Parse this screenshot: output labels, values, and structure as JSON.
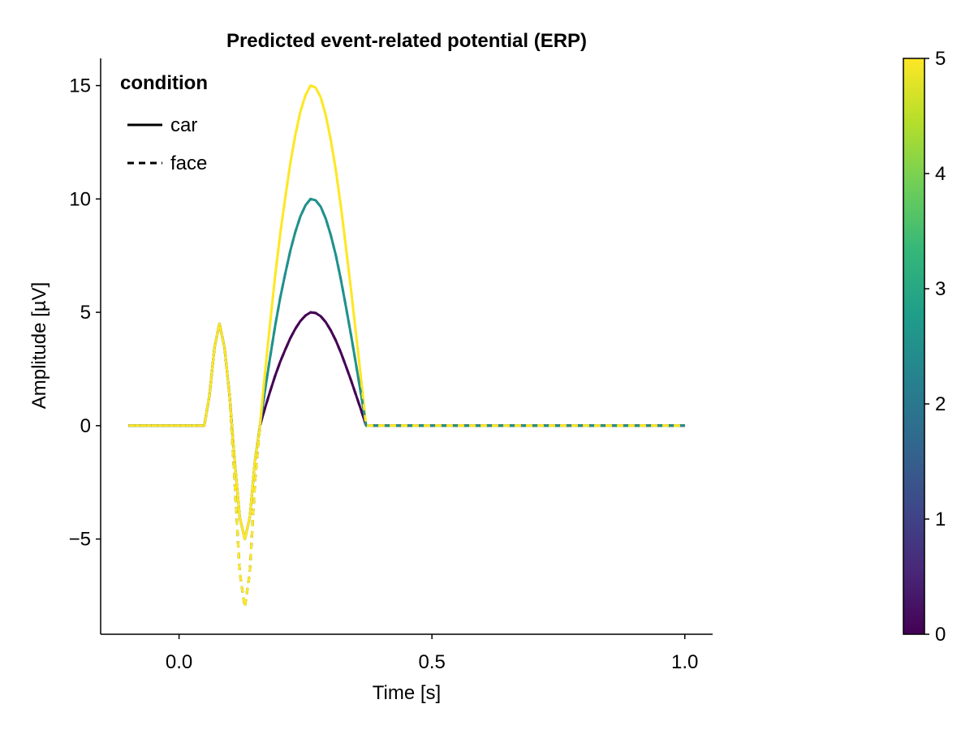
{
  "chart_data": {
    "type": "line",
    "title": "Predicted event-related potential (ERP)",
    "xlabel": "Time [s]",
    "ylabel": "Amplitude [µV]",
    "xlim": [
      -0.155,
      1.055
    ],
    "ylim": [
      -9.2,
      16.2
    ],
    "x_ticks": [
      0.0,
      0.5,
      1.0
    ],
    "x_tick_labels": [
      "0.0",
      "0.5",
      "1.0"
    ],
    "y_ticks": [
      -5,
      0,
      5,
      10,
      15
    ],
    "y_tick_labels": [
      "−5",
      "0",
      "5",
      "10",
      "15"
    ],
    "grid": false,
    "legend": {
      "title": "condition",
      "placement": "top-left",
      "entries": [
        {
          "label": "car",
          "style": "solid"
        },
        {
          "label": "face",
          "style": "dashed"
        }
      ]
    },
    "colorbar": {
      "colormap": "viridis",
      "range": [
        0,
        5
      ],
      "ticks": [
        0,
        1,
        2,
        3,
        4,
        5
      ],
      "tick_labels": [
        "0",
        "1",
        "2",
        "3",
        "4",
        "5"
      ],
      "stops": [
        "#440154",
        "#482878",
        "#3e4989",
        "#31688e",
        "#26828e",
        "#1f9e89",
        "#35b779",
        "#6ece58",
        "#b5de2b",
        "#fde725"
      ]
    },
    "x": [
      -0.1,
      -0.09,
      -0.08,
      -0.07,
      -0.06,
      -0.05,
      -0.04,
      -0.03,
      -0.02,
      -0.01,
      0.0,
      0.01,
      0.02,
      0.03,
      0.04,
      0.05,
      0.06,
      0.07,
      0.08,
      0.09,
      0.1,
      0.11,
      0.12,
      0.13,
      0.14,
      0.15,
      0.16,
      0.17,
      0.18,
      0.19,
      0.2,
      0.21,
      0.22,
      0.23,
      0.24,
      0.25,
      0.26,
      0.27,
      0.28,
      0.29,
      0.3,
      0.31,
      0.32,
      0.33,
      0.34,
      0.35,
      0.36,
      0.37,
      0.38,
      0.39,
      0.4,
      0.41,
      0.42,
      0.43,
      0.44,
      0.45,
      0.46,
      0.47,
      0.48,
      0.49,
      0.5,
      0.51,
      0.52,
      0.53,
      0.54,
      0.55,
      0.56,
      0.57,
      0.58,
      0.59,
      0.6,
      0.61,
      0.62,
      0.63,
      0.64,
      0.65,
      0.66,
      0.67,
      0.68,
      0.69,
      0.7,
      0.71,
      0.72,
      0.73,
      0.74,
      0.75,
      0.76,
      0.77,
      0.78,
      0.79,
      0.8,
      0.81,
      0.82,
      0.83,
      0.84,
      0.85,
      0.86,
      0.87,
      0.88,
      0.89,
      0.9,
      0.91,
      0.92,
      0.93,
      0.94,
      0.95,
      0.96,
      0.97,
      0.98,
      0.99,
      1.0
    ],
    "series": [
      {
        "condition": "car",
        "continuous": 0.0,
        "color": "#440154",
        "y": [
          0.0,
          0.0,
          0.0,
          0.0,
          0.0,
          0.0,
          0.0,
          0.0,
          0.0,
          0.0,
          0.0,
          0.0,
          0.0,
          0.0,
          0.0,
          0.0,
          1.309,
          3.427,
          4.5,
          3.427,
          1.309,
          -1.545,
          -4.045,
          -5.0,
          -4.045,
          -1.545,
          0.0,
          0.778,
          1.51,
          2.201,
          2.817,
          3.349,
          3.86,
          4.276,
          4.617,
          4.86,
          5.0,
          4.971,
          4.829,
          4.568,
          4.206,
          3.754,
          3.22,
          2.624,
          1.997,
          1.342,
          0.684,
          0.0,
          0.0,
          0.0,
          0.0,
          0.0,
          0.0,
          0.0,
          0.0,
          0.0,
          0.0,
          0.0,
          0.0,
          0.0,
          0.0,
          0.0,
          0.0,
          0.0,
          0.0,
          0.0,
          0.0,
          0.0,
          0.0,
          0.0,
          0.0,
          0.0,
          0.0,
          0.0,
          0.0,
          0.0,
          0.0,
          0.0,
          0.0,
          0.0,
          0.0,
          0.0,
          0.0,
          0.0,
          0.0,
          0.0,
          0.0,
          0.0,
          0.0,
          0.0,
          0.0,
          0.0,
          0.0,
          0.0,
          0.0,
          0.0,
          0.0,
          0.0,
          0.0,
          0.0,
          0.0,
          0.0,
          0.0,
          0.0,
          0.0,
          0.0,
          0.0,
          0.0,
          0.0,
          0.0,
          0.0
        ]
      },
      {
        "condition": "car",
        "continuous": 2.5,
        "color": "#21918c",
        "y": [
          0.0,
          0.0,
          0.0,
          0.0,
          0.0,
          0.0,
          0.0,
          0.0,
          0.0,
          0.0,
          0.0,
          0.0,
          0.0,
          0.0,
          0.0,
          0.0,
          1.309,
          3.427,
          4.5,
          3.427,
          1.309,
          -1.545,
          -4.045,
          -5.0,
          -4.045,
          -1.545,
          0.0,
          1.556,
          3.02,
          4.403,
          5.635,
          6.698,
          7.719,
          8.553,
          9.234,
          9.72,
          10.0,
          9.943,
          9.659,
          9.136,
          8.411,
          7.509,
          6.44,
          5.249,
          3.994,
          2.684,
          1.368,
          0.0,
          0.0,
          0.0,
          0.0,
          0.0,
          0.0,
          0.0,
          0.0,
          0.0,
          0.0,
          0.0,
          0.0,
          0.0,
          0.0,
          0.0,
          0.0,
          0.0,
          0.0,
          0.0,
          0.0,
          0.0,
          0.0,
          0.0,
          0.0,
          0.0,
          0.0,
          0.0,
          0.0,
          0.0,
          0.0,
          0.0,
          0.0,
          0.0,
          0.0,
          0.0,
          0.0,
          0.0,
          0.0,
          0.0,
          0.0,
          0.0,
          0.0,
          0.0,
          0.0,
          0.0,
          0.0,
          0.0,
          0.0,
          0.0,
          0.0,
          0.0,
          0.0,
          0.0,
          0.0,
          0.0,
          0.0,
          0.0,
          0.0,
          0.0,
          0.0,
          0.0,
          0.0,
          0.0,
          0.0
        ]
      },
      {
        "condition": "car",
        "continuous": 5.0,
        "color": "#fde725",
        "y": [
          0.0,
          0.0,
          0.0,
          0.0,
          0.0,
          0.0,
          0.0,
          0.0,
          0.0,
          0.0,
          0.0,
          0.0,
          0.0,
          0.0,
          0.0,
          0.0,
          1.309,
          3.427,
          4.5,
          3.427,
          1.309,
          -1.545,
          -4.045,
          -5.0,
          -4.045,
          -1.545,
          0.0,
          2.334,
          4.53,
          6.604,
          8.452,
          10.047,
          11.579,
          12.829,
          13.852,
          14.581,
          15.0,
          14.914,
          14.488,
          13.704,
          12.617,
          11.263,
          9.66,
          7.873,
          5.991,
          4.026,
          2.052,
          0.0,
          0.0,
          0.0,
          0.0,
          0.0,
          0.0,
          0.0,
          0.0,
          0.0,
          0.0,
          0.0,
          0.0,
          0.0,
          0.0,
          0.0,
          0.0,
          0.0,
          0.0,
          0.0,
          0.0,
          0.0,
          0.0,
          0.0,
          0.0,
          0.0,
          0.0,
          0.0,
          0.0,
          0.0,
          0.0,
          0.0,
          0.0,
          0.0,
          0.0,
          0.0,
          0.0,
          0.0,
          0.0,
          0.0,
          0.0,
          0.0,
          0.0,
          0.0,
          0.0,
          0.0,
          0.0,
          0.0,
          0.0,
          0.0,
          0.0,
          0.0,
          0.0,
          0.0,
          0.0,
          0.0,
          0.0,
          0.0,
          0.0,
          0.0,
          0.0,
          0.0,
          0.0,
          0.0,
          0.0
        ]
      },
      {
        "condition": "face",
        "continuous": 0.0,
        "color": "#440154",
        "y": [
          0.0,
          0.0,
          0.0,
          0.0,
          0.0,
          0.0,
          0.0,
          0.0,
          0.0,
          0.0,
          0.0,
          0.0,
          0.0,
          0.0,
          0.0,
          0.0,
          1.309,
          3.427,
          4.5,
          3.427,
          1.309,
          -2.472,
          -6.472,
          -8.0,
          -6.472,
          -2.472,
          0.0,
          0.778,
          1.51,
          2.201,
          2.817,
          3.349,
          3.86,
          4.276,
          4.617,
          4.86,
          5.0,
          4.971,
          4.829,
          4.568,
          4.206,
          3.754,
          3.22,
          2.624,
          1.997,
          1.342,
          0.684,
          0.0,
          0.0,
          0.0,
          0.0,
          0.0,
          0.0,
          0.0,
          0.0,
          0.0,
          0.0,
          0.0,
          0.0,
          0.0,
          0.0,
          0.0,
          0.0,
          0.0,
          0.0,
          0.0,
          0.0,
          0.0,
          0.0,
          0.0,
          0.0,
          0.0,
          0.0,
          0.0,
          0.0,
          0.0,
          0.0,
          0.0,
          0.0,
          0.0,
          0.0,
          0.0,
          0.0,
          0.0,
          0.0,
          0.0,
          0.0,
          0.0,
          0.0,
          0.0,
          0.0,
          0.0,
          0.0,
          0.0,
          0.0,
          0.0,
          0.0,
          0.0,
          0.0,
          0.0,
          0.0,
          0.0,
          0.0,
          0.0,
          0.0,
          0.0,
          0.0,
          0.0,
          0.0,
          0.0,
          0.0
        ]
      },
      {
        "condition": "face",
        "continuous": 2.5,
        "color": "#21918c",
        "y": [
          0.0,
          0.0,
          0.0,
          0.0,
          0.0,
          0.0,
          0.0,
          0.0,
          0.0,
          0.0,
          0.0,
          0.0,
          0.0,
          0.0,
          0.0,
          0.0,
          1.309,
          3.427,
          4.5,
          3.427,
          1.309,
          -2.472,
          -6.472,
          -8.0,
          -6.472,
          -2.472,
          0.0,
          1.556,
          3.02,
          4.403,
          5.635,
          6.698,
          7.719,
          8.553,
          9.234,
          9.72,
          10.0,
          9.943,
          9.659,
          9.136,
          8.411,
          7.509,
          6.44,
          5.249,
          3.994,
          2.684,
          1.368,
          0.0,
          0.0,
          0.0,
          0.0,
          0.0,
          0.0,
          0.0,
          0.0,
          0.0,
          0.0,
          0.0,
          0.0,
          0.0,
          0.0,
          0.0,
          0.0,
          0.0,
          0.0,
          0.0,
          0.0,
          0.0,
          0.0,
          0.0,
          0.0,
          0.0,
          0.0,
          0.0,
          0.0,
          0.0,
          0.0,
          0.0,
          0.0,
          0.0,
          0.0,
          0.0,
          0.0,
          0.0,
          0.0,
          0.0,
          0.0,
          0.0,
          0.0,
          0.0,
          0.0,
          0.0,
          0.0,
          0.0,
          0.0,
          0.0,
          0.0,
          0.0,
          0.0,
          0.0,
          0.0,
          0.0,
          0.0,
          0.0,
          0.0,
          0.0,
          0.0,
          0.0,
          0.0,
          0.0,
          0.0
        ]
      },
      {
        "condition": "face",
        "continuous": 5.0,
        "color": "#fde725",
        "y": [
          0.0,
          0.0,
          0.0,
          0.0,
          0.0,
          0.0,
          0.0,
          0.0,
          0.0,
          0.0,
          0.0,
          0.0,
          0.0,
          0.0,
          0.0,
          0.0,
          1.309,
          3.427,
          4.5,
          3.427,
          1.309,
          -2.472,
          -6.472,
          -8.0,
          -6.472,
          -2.472,
          0.0,
          2.334,
          4.53,
          6.604,
          8.452,
          10.047,
          11.579,
          12.829,
          13.852,
          14.581,
          15.0,
          14.914,
          14.488,
          13.704,
          12.617,
          11.263,
          9.66,
          7.873,
          5.991,
          4.026,
          2.052,
          0.0,
          0.0,
          0.0,
          0.0,
          0.0,
          0.0,
          0.0,
          0.0,
          0.0,
          0.0,
          0.0,
          0.0,
          0.0,
          0.0,
          0.0,
          0.0,
          0.0,
          0.0,
          0.0,
          0.0,
          0.0,
          0.0,
          0.0,
          0.0,
          0.0,
          0.0,
          0.0,
          0.0,
          0.0,
          0.0,
          0.0,
          0.0,
          0.0,
          0.0,
          0.0,
          0.0,
          0.0,
          0.0,
          0.0,
          0.0,
          0.0,
          0.0,
          0.0,
          0.0,
          0.0,
          0.0,
          0.0,
          0.0,
          0.0,
          0.0,
          0.0,
          0.0,
          0.0,
          0.0,
          0.0,
          0.0,
          0.0,
          0.0,
          0.0,
          0.0,
          0.0,
          0.0,
          0.0,
          0.0
        ]
      }
    ]
  }
}
